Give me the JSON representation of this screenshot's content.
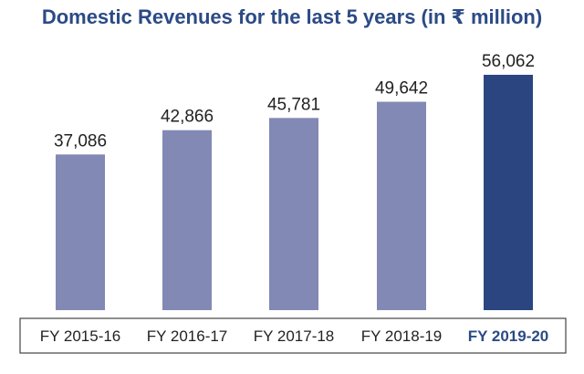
{
  "chart_data": {
    "type": "bar",
    "title": "Domestic Revenues for the last 5 years (in ₹ million)",
    "categories": [
      "FY 2015-16",
      "FY 2016-17",
      "FY 2017-18",
      "FY 2018-19",
      "FY 2019-20"
    ],
    "values": [
      37086,
      42866,
      45781,
      49642,
      56062
    ],
    "value_labels": [
      "37,086",
      "42,866",
      "45,781",
      "49,642",
      "56,062"
    ],
    "highlight_index": 4,
    "colors": {
      "bar": "#8289b4",
      "highlight_bar": "#2b4580",
      "title": "#2b4a86",
      "highlight_tick": "#2b4a86",
      "axis_box": "#444444"
    },
    "xlabel": "",
    "ylabel": "",
    "ylim": [
      0,
      56062
    ],
    "grid": false,
    "legend": "none"
  }
}
